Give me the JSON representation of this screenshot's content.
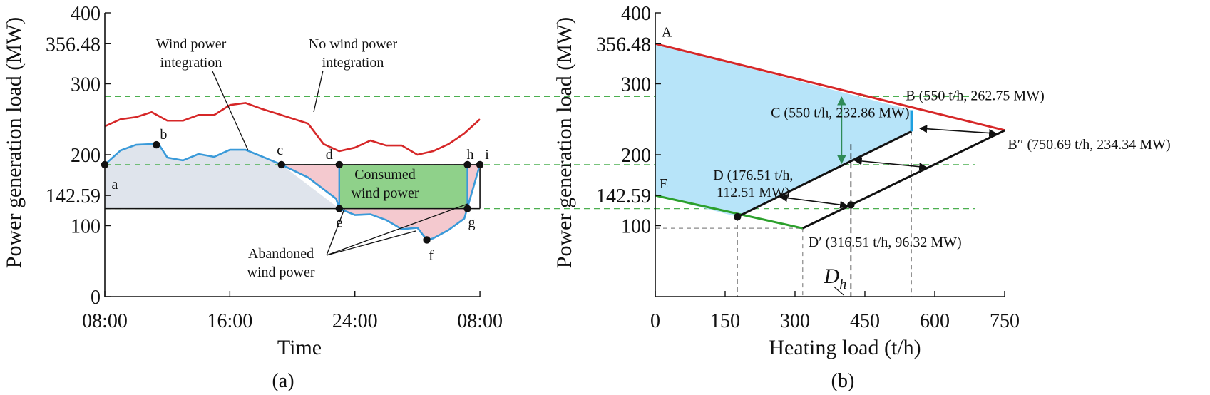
{
  "chart_data": [
    {
      "type": "line",
      "panel": "(a)",
      "xlabel": "Time",
      "ylabel": "Power generation load (MW)",
      "x_ticks": [
        "08:00",
        "16:00",
        "24:00",
        "08:00"
      ],
      "x_tick_hours": [
        0,
        8,
        16,
        24
      ],
      "y_ticks": [
        "0",
        "100",
        "142.59",
        "200",
        "300",
        "356.48",
        "400"
      ],
      "y_tick_values": [
        0,
        100,
        142.59,
        200,
        300,
        356.48,
        400
      ],
      "xlim": [
        0,
        24
      ],
      "ylim": [
        0,
        400
      ],
      "reference_lines": [
        282,
        186,
        124
      ],
      "series": [
        {
          "name": "No wind power integration",
          "color": "#d62728",
          "x": [
            0,
            1,
            2,
            3,
            4,
            5,
            6,
            7,
            8,
            9,
            10,
            11,
            12,
            13,
            14,
            15,
            16,
            17,
            18,
            19,
            20,
            21,
            22,
            23,
            24
          ],
          "y": [
            240,
            250,
            253,
            260,
            248,
            248,
            256,
            256,
            270,
            273,
            265,
            258,
            251,
            244,
            215,
            205,
            210,
            220,
            213,
            213,
            200,
            205,
            215,
            230,
            250
          ]
        },
        {
          "name": "Wind power integration",
          "color": "#3a9ad9",
          "x": [
            0,
            1,
            2,
            3,
            3.5,
            4,
            5,
            6,
            7,
            8,
            9,
            10,
            11.3,
            13,
            14.8,
            15,
            16,
            17,
            18,
            19,
            20,
            20.6,
            21,
            22,
            23,
            24
          ],
          "y": [
            186,
            206,
            214,
            215,
            213,
            196,
            192,
            201,
            197,
            207,
            207,
            198,
            186,
            168,
            138,
            124,
            115,
            116,
            108,
            95,
            97,
            80,
            82,
            94,
            110,
            186
          ]
        }
      ],
      "points": [
        {
          "label": "a",
          "x": 0,
          "y": 186
        },
        {
          "label": "b",
          "x": 3.3,
          "y": 214
        },
        {
          "label": "c",
          "x": 11.3,
          "y": 186
        },
        {
          "label": "d",
          "x": 15,
          "y": 186
        },
        {
          "label": "e",
          "x": 15,
          "y": 124
        },
        {
          "label": "f",
          "x": 20.6,
          "y": 80
        },
        {
          "label": "g",
          "x": 23.2,
          "y": 124
        },
        {
          "label": "h",
          "x": 23.2,
          "y": 186
        },
        {
          "label": "i",
          "x": 24,
          "y": 186
        }
      ],
      "annotations": [
        "Wind power integration",
        "No wind power integration",
        "Consumed wind power",
        "Abandoned wind power"
      ]
    },
    {
      "type": "line",
      "panel": "(b)",
      "xlabel": "Heating load (t/h)",
      "ylabel": "Power generation load (MW)",
      "x_ticks": [
        "0",
        "150",
        "300",
        "450",
        "600",
        "750"
      ],
      "x_tick_values": [
        0,
        150,
        300,
        450,
        600,
        750
      ],
      "y_ticks": [
        "100",
        "142.59",
        "200",
        "300",
        "356.48",
        "400"
      ],
      "y_tick_values": [
        100,
        142.59,
        200,
        300,
        356.48,
        400
      ],
      "xlim": [
        0,
        750
      ],
      "ylim": [
        0,
        400
      ],
      "points": [
        {
          "label": "A",
          "x": 0,
          "y": 356.48
        },
        {
          "label": "B (550 t/h, 262.75 MW)",
          "x": 550,
          "y": 262.75
        },
        {
          "label": "B′′ (750.69 t/h, 234.34 MW)",
          "x": 750.69,
          "y": 234.34
        },
        {
          "label": "C (550 t/h, 232.86 MW)",
          "x": 550,
          "y": 232.86
        },
        {
          "label": "D (176.51 t/h, 112.51 MW)",
          "x": 176.51,
          "y": 112.51
        },
        {
          "label": "D′ (316.51 t/h, 96.32 MW)",
          "x": 316.51,
          "y": 96.32
        },
        {
          "label": "E",
          "x": 0,
          "y": 142.59
        }
      ],
      "dh_label": "D",
      "dh_sub": "h",
      "dh_x": 420,
      "colors": {
        "top_edge": "#d62728",
        "bottom_edge": "#2ca02c",
        "region": "#b7e4f9",
        "shifted_edge": "#111111",
        "arrow_green": "#2e8b57"
      }
    }
  ],
  "captions": {
    "a": "(a)",
    "b": "(b)"
  }
}
